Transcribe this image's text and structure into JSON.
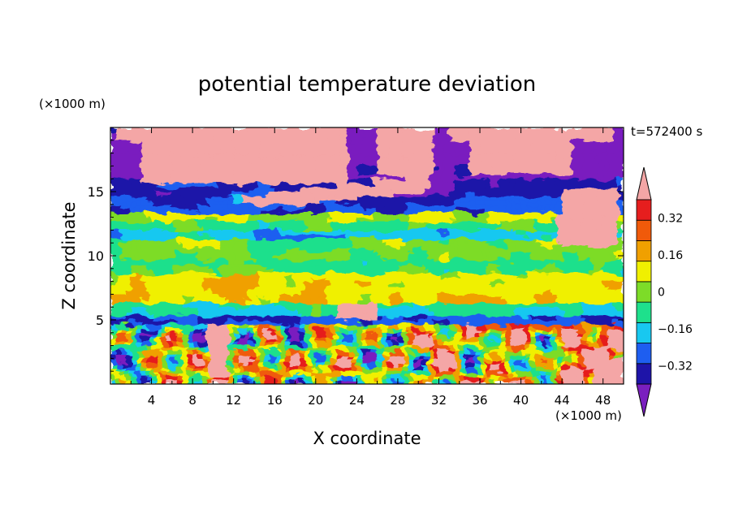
{
  "chart_data": {
    "type": "heatmap",
    "title": "potential temperature deviation",
    "xlabel": "X coordinate",
    "ylabel": "Z coordinate",
    "x_unit": "(×1000 m)",
    "y_unit": "(×1000 m)",
    "time_label": "t=572400 s",
    "xlim": [
      0,
      50
    ],
    "ylim": [
      0,
      20
    ],
    "x_ticks": [
      4,
      8,
      12,
      16,
      20,
      24,
      28,
      32,
      36,
      40,
      44,
      48
    ],
    "y_ticks": [
      5,
      10,
      15
    ],
    "x_tick_labels": [
      "4",
      "8",
      "12",
      "16",
      "20",
      "24",
      "28",
      "32",
      "36",
      "40",
      "44",
      "48"
    ],
    "y_tick_labels": [
      "5",
      "10",
      "15"
    ],
    "colorbar": {
      "levels": [
        -0.4,
        -0.32,
        -0.24,
        -0.16,
        -0.08,
        0,
        0.08,
        0.16,
        0.24,
        0.32,
        0.4
      ],
      "labels": [
        "0.32",
        "0.16",
        "0",
        "−0.16",
        "−0.32"
      ],
      "label_values": [
        0.32,
        0.16,
        0,
        -0.16,
        -0.32
      ],
      "colors": [
        "#7a1fbf",
        "#1e14a8",
        "#1e5ef0",
        "#18c8f0",
        "#1ee08c",
        "#7ddc28",
        "#f0f000",
        "#f0a000",
        "#f05a0a",
        "#e61e1e",
        "#f4a6a6"
      ],
      "extend": "both"
    }
  }
}
